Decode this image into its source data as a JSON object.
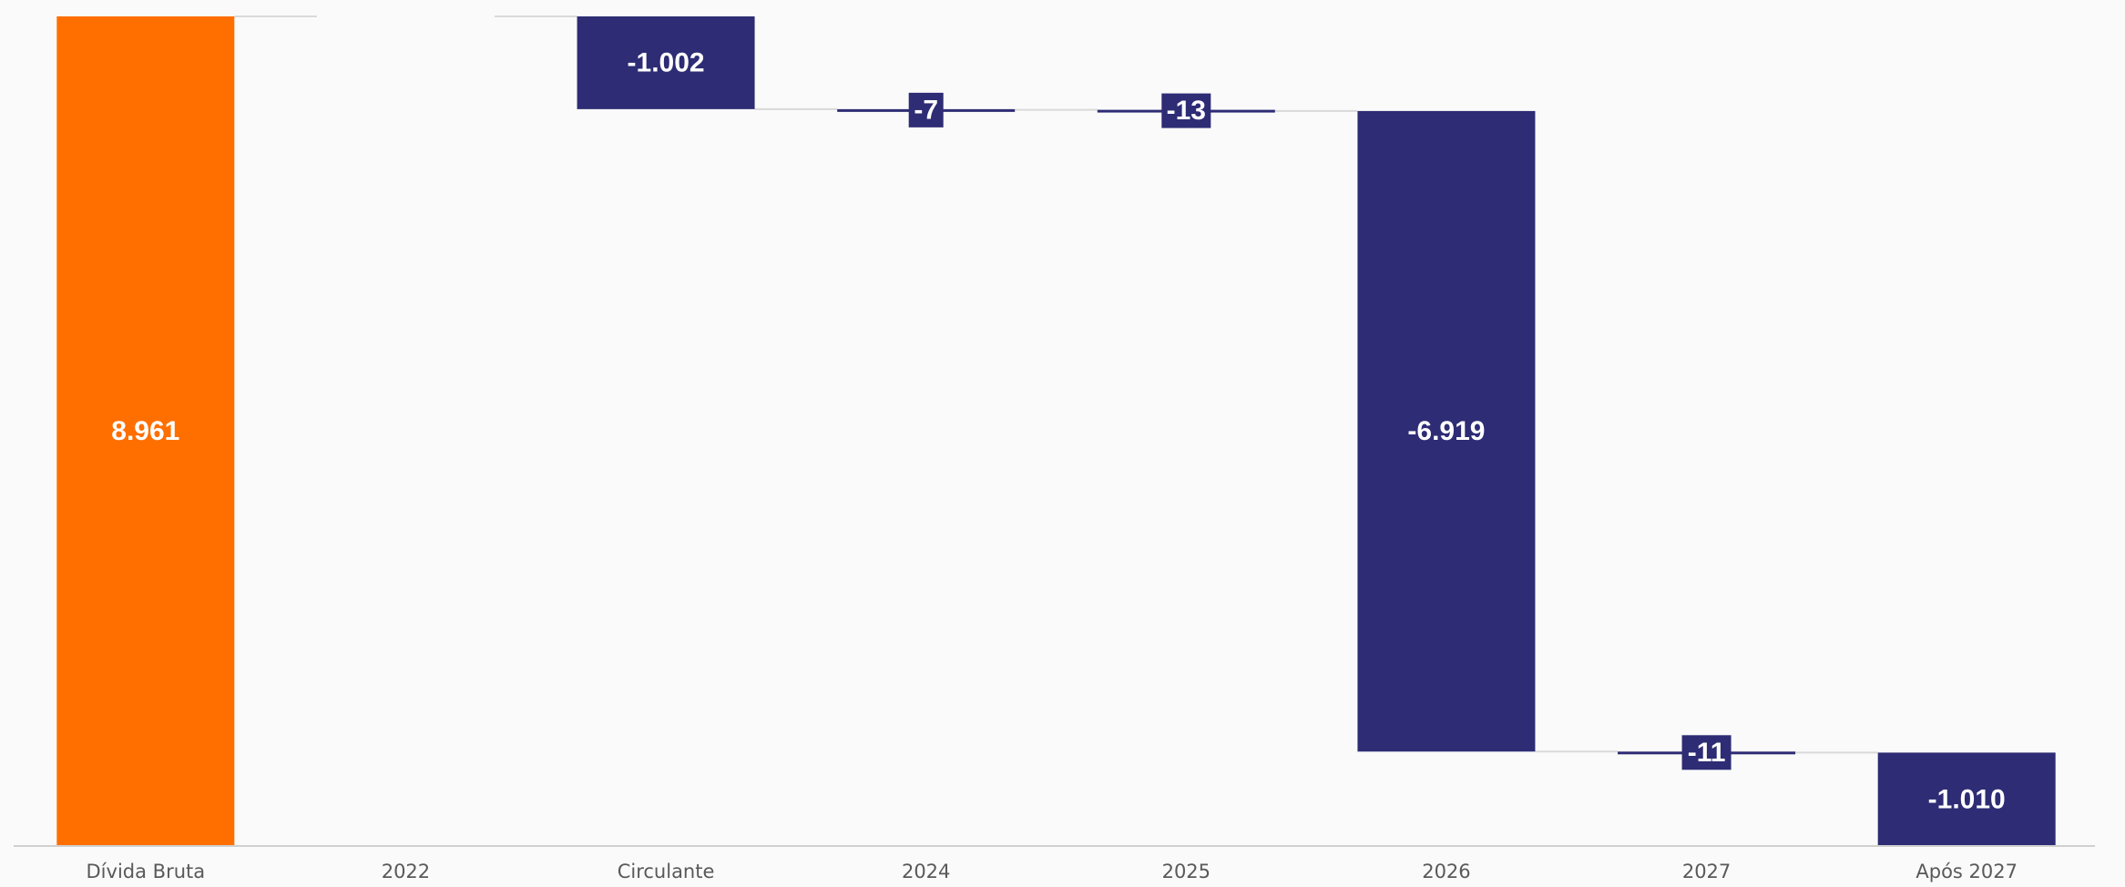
{
  "chart_data": {
    "type": "waterfall",
    "categories": [
      "Dívida Bruta",
      "2022",
      "Circulante",
      "2024",
      "2025",
      "2026",
      "2027",
      "Após 2027"
    ],
    "values": [
      8961,
      0,
      -1002,
      -7,
      -13,
      -6919,
      -11,
      -1010
    ],
    "data_labels": [
      "8.961",
      "",
      "-1.002",
      "-7",
      "-13",
      "-6.919",
      "-11",
      "-1.010"
    ],
    "ylim": [
      0,
      8961
    ],
    "grid": false,
    "legend": "none",
    "colors": {
      "total": "#ff6f00",
      "decrease": "#2d2c74",
      "connector": "#d9d9d9",
      "axis": "#d0d0d0"
    }
  }
}
